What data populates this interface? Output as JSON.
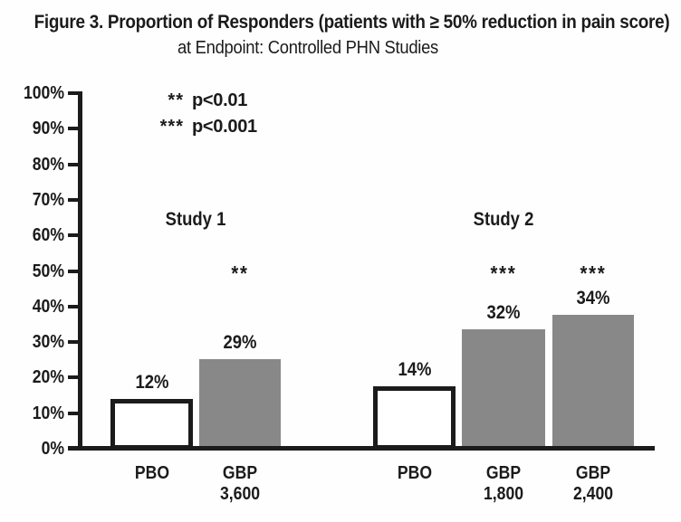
{
  "figure": {
    "title": "Figure 3. Proportion of Responders (patients with ≥ 50% reduction in pain score)",
    "subtitle": "at Endpoint: Controlled PHN Studies"
  },
  "chart_data": {
    "type": "bar",
    "title": "Figure 3. Proportion of Responders (patients with ≥ 50% reduction in pain score)",
    "subtitle": "at Endpoint: Controlled PHN Studies",
    "xlabel": "",
    "ylabel": "",
    "ylim": [
      0,
      100
    ],
    "ytick_step": 10,
    "ytick_labels": [
      "0%",
      "10%",
      "20%",
      "30%",
      "40%",
      "50%",
      "60%",
      "70%",
      "80%",
      "90%",
      "100%"
    ],
    "grid": false,
    "legend_position": "inside-top-left",
    "legend_rows": [
      {
        "symbol": "**",
        "text": "p<0.01"
      },
      {
        "symbol": "***",
        "text": "p<0.001"
      }
    ],
    "groups": [
      {
        "name": "Study 1",
        "bars": [
          {
            "x_label": "PBO",
            "value_pct": 12,
            "value_label": "12%",
            "significance": "",
            "fill": "#ffffff",
            "drawn_height_pct": 14.2
          },
          {
            "x_label": "GBP 3,600",
            "value_pct": 29,
            "value_label": "29%",
            "significance": "**",
            "fill": "#888888",
            "drawn_height_pct": 25.4
          }
        ]
      },
      {
        "name": "Study 2",
        "bars": [
          {
            "x_label": "PBO",
            "value_pct": 14,
            "value_label": "14%",
            "significance": "",
            "fill": "#ffffff",
            "drawn_height_pct": 17.8
          },
          {
            "x_label": "GBP 1,800",
            "value_pct": 32,
            "value_label": "32%",
            "significance": "***",
            "fill": "#888888",
            "drawn_height_pct": 33.8
          },
          {
            "x_label": "GBP 2,400",
            "value_pct": 34,
            "value_label": "34%",
            "significance": "***",
            "fill": "#888888",
            "drawn_height_pct": 37.9
          }
        ]
      }
    ],
    "colors": {
      "bar_gray": "#888888",
      "bar_white": "#ffffff",
      "ink": "#1b1b1b",
      "background": "#fefefe"
    }
  }
}
